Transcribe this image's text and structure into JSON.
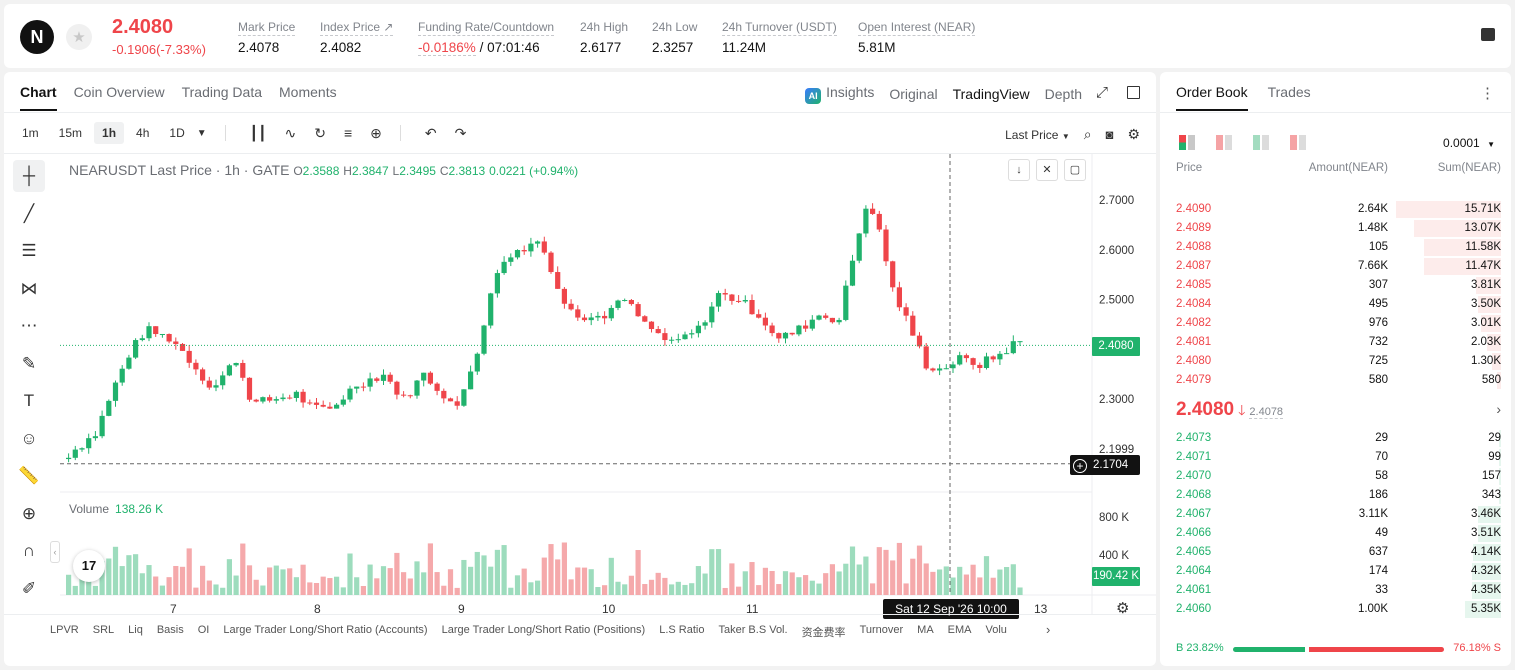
{
  "header": {
    "logo_text": "N",
    "last_price": "2.4080",
    "price_change": "-0.1906(-7.33%)",
    "stats": [
      {
        "label": "Mark Price",
        "value": "2.4078"
      },
      {
        "label": "Index Price ↗",
        "value": "2.4082"
      },
      {
        "label": "Funding Rate/Countdown",
        "value": "-0.0186%",
        "value2": "/ 07:01:46"
      },
      {
        "label": "24h High",
        "value": "2.6177"
      },
      {
        "label": "24h Low",
        "value": "2.3257"
      },
      {
        "label": "24h Turnover (USDT)",
        "value": "11.24M"
      },
      {
        "label": "Open Interest (NEAR)",
        "value": "5.81M"
      }
    ]
  },
  "chart_tabs": [
    "Chart",
    "Coin Overview",
    "Trading Data",
    "Moments"
  ],
  "view_tabs": {
    "insights": "Insights",
    "original": "Original",
    "tradingview": "TradingView",
    "depth": "Depth",
    "ai_badge": "AI"
  },
  "toolbar": {
    "intervals": [
      "1m",
      "15m",
      "1h",
      "4h",
      "1D"
    ],
    "active_interval": "1h",
    "price_type": "Last Price"
  },
  "legend": {
    "symbol": "NEARUSDT Last Price · 1h · GATE",
    "o_label": "O",
    "o": "2.3588",
    "h_label": "H",
    "h": "2.3847",
    "l_label": "L",
    "l": "2.3495",
    "c_label": "C",
    "c": "2.3813",
    "change": "0.0221 (+0.94%)"
  },
  "volume_label": {
    "title": "Volume",
    "value": "138.26 K"
  },
  "price_tags": {
    "last": "2.4080",
    "crosshair": "2.1704",
    "volume": "190.42 K"
  },
  "date_tag": "Sat 12 Sep '26   10:00",
  "tv_logo": "17",
  "indicators": [
    "LPVR",
    "SRL",
    "Liq",
    "Basis",
    "OI",
    "Large Trader Long/Short Ratio (Accounts)",
    "Large Trader Long/Short Ratio (Positions)",
    "L.S Ratio",
    "Taker B.S Vol.",
    "资金费率",
    "Turnover",
    "MA",
    "EMA",
    "Volu"
  ],
  "chart_data": {
    "type": "candlestick",
    "price_axis": [
      "2.7000",
      "2.6000",
      "2.5000",
      "2.4000",
      "2.3000",
      "2.1999"
    ],
    "price_range": [
      2.165,
      2.72
    ],
    "volume_axis": [
      "800 K",
      "400 K"
    ],
    "volume_range": [
      0,
      1000
    ],
    "x_labels": [
      "7",
      "8",
      "9",
      "10",
      "11",
      "13"
    ],
    "last_price": 2.408,
    "crosshair_price": 2.1704,
    "colors": {
      "up": "#20b26c",
      "down": "#ef454a"
    }
  },
  "order_book": {
    "tabs": [
      "Order Book",
      "Trades"
    ],
    "precision": "0.0001",
    "columns": {
      "price": "Price",
      "amount": "Amount(NEAR)",
      "sum": "Sum(NEAR)"
    },
    "asks": [
      {
        "price": "2.4090",
        "amount": "2.64K",
        "sum": "15.71K"
      },
      {
        "price": "2.4089",
        "amount": "1.48K",
        "sum": "13.07K"
      },
      {
        "price": "2.4088",
        "amount": "105",
        "sum": "11.58K"
      },
      {
        "price": "2.4087",
        "amount": "7.66K",
        "sum": "11.47K"
      },
      {
        "price": "2.4085",
        "amount": "307",
        "sum": "3.81K"
      },
      {
        "price": "2.4084",
        "amount": "495",
        "sum": "3.50K"
      },
      {
        "price": "2.4082",
        "amount": "976",
        "sum": "3.01K"
      },
      {
        "price": "2.4081",
        "amount": "732",
        "sum": "2.03K"
      },
      {
        "price": "2.4080",
        "amount": "725",
        "sum": "1.30K"
      },
      {
        "price": "2.4079",
        "amount": "580",
        "sum": "580"
      }
    ],
    "mid_price": "2.4080",
    "mid_arrow": "🡓",
    "mid_mark": "2.4078",
    "bids": [
      {
        "price": "2.4073",
        "amount": "29",
        "sum": "29"
      },
      {
        "price": "2.4071",
        "amount": "70",
        "sum": "99"
      },
      {
        "price": "2.4070",
        "amount": "58",
        "sum": "157"
      },
      {
        "price": "2.4068",
        "amount": "186",
        "sum": "343"
      },
      {
        "price": "2.4067",
        "amount": "3.11K",
        "sum": "3.46K"
      },
      {
        "price": "2.4066",
        "amount": "49",
        "sum": "3.51K"
      },
      {
        "price": "2.4065",
        "amount": "637",
        "sum": "4.14K"
      },
      {
        "price": "2.4064",
        "amount": "174",
        "sum": "4.32K"
      },
      {
        "price": "2.4061",
        "amount": "33",
        "sum": "4.35K"
      },
      {
        "price": "2.4060",
        "amount": "1.00K",
        "sum": "5.35K"
      }
    ],
    "ratio": {
      "buy": "B 23.82%",
      "sell": "76.18% S"
    }
  }
}
